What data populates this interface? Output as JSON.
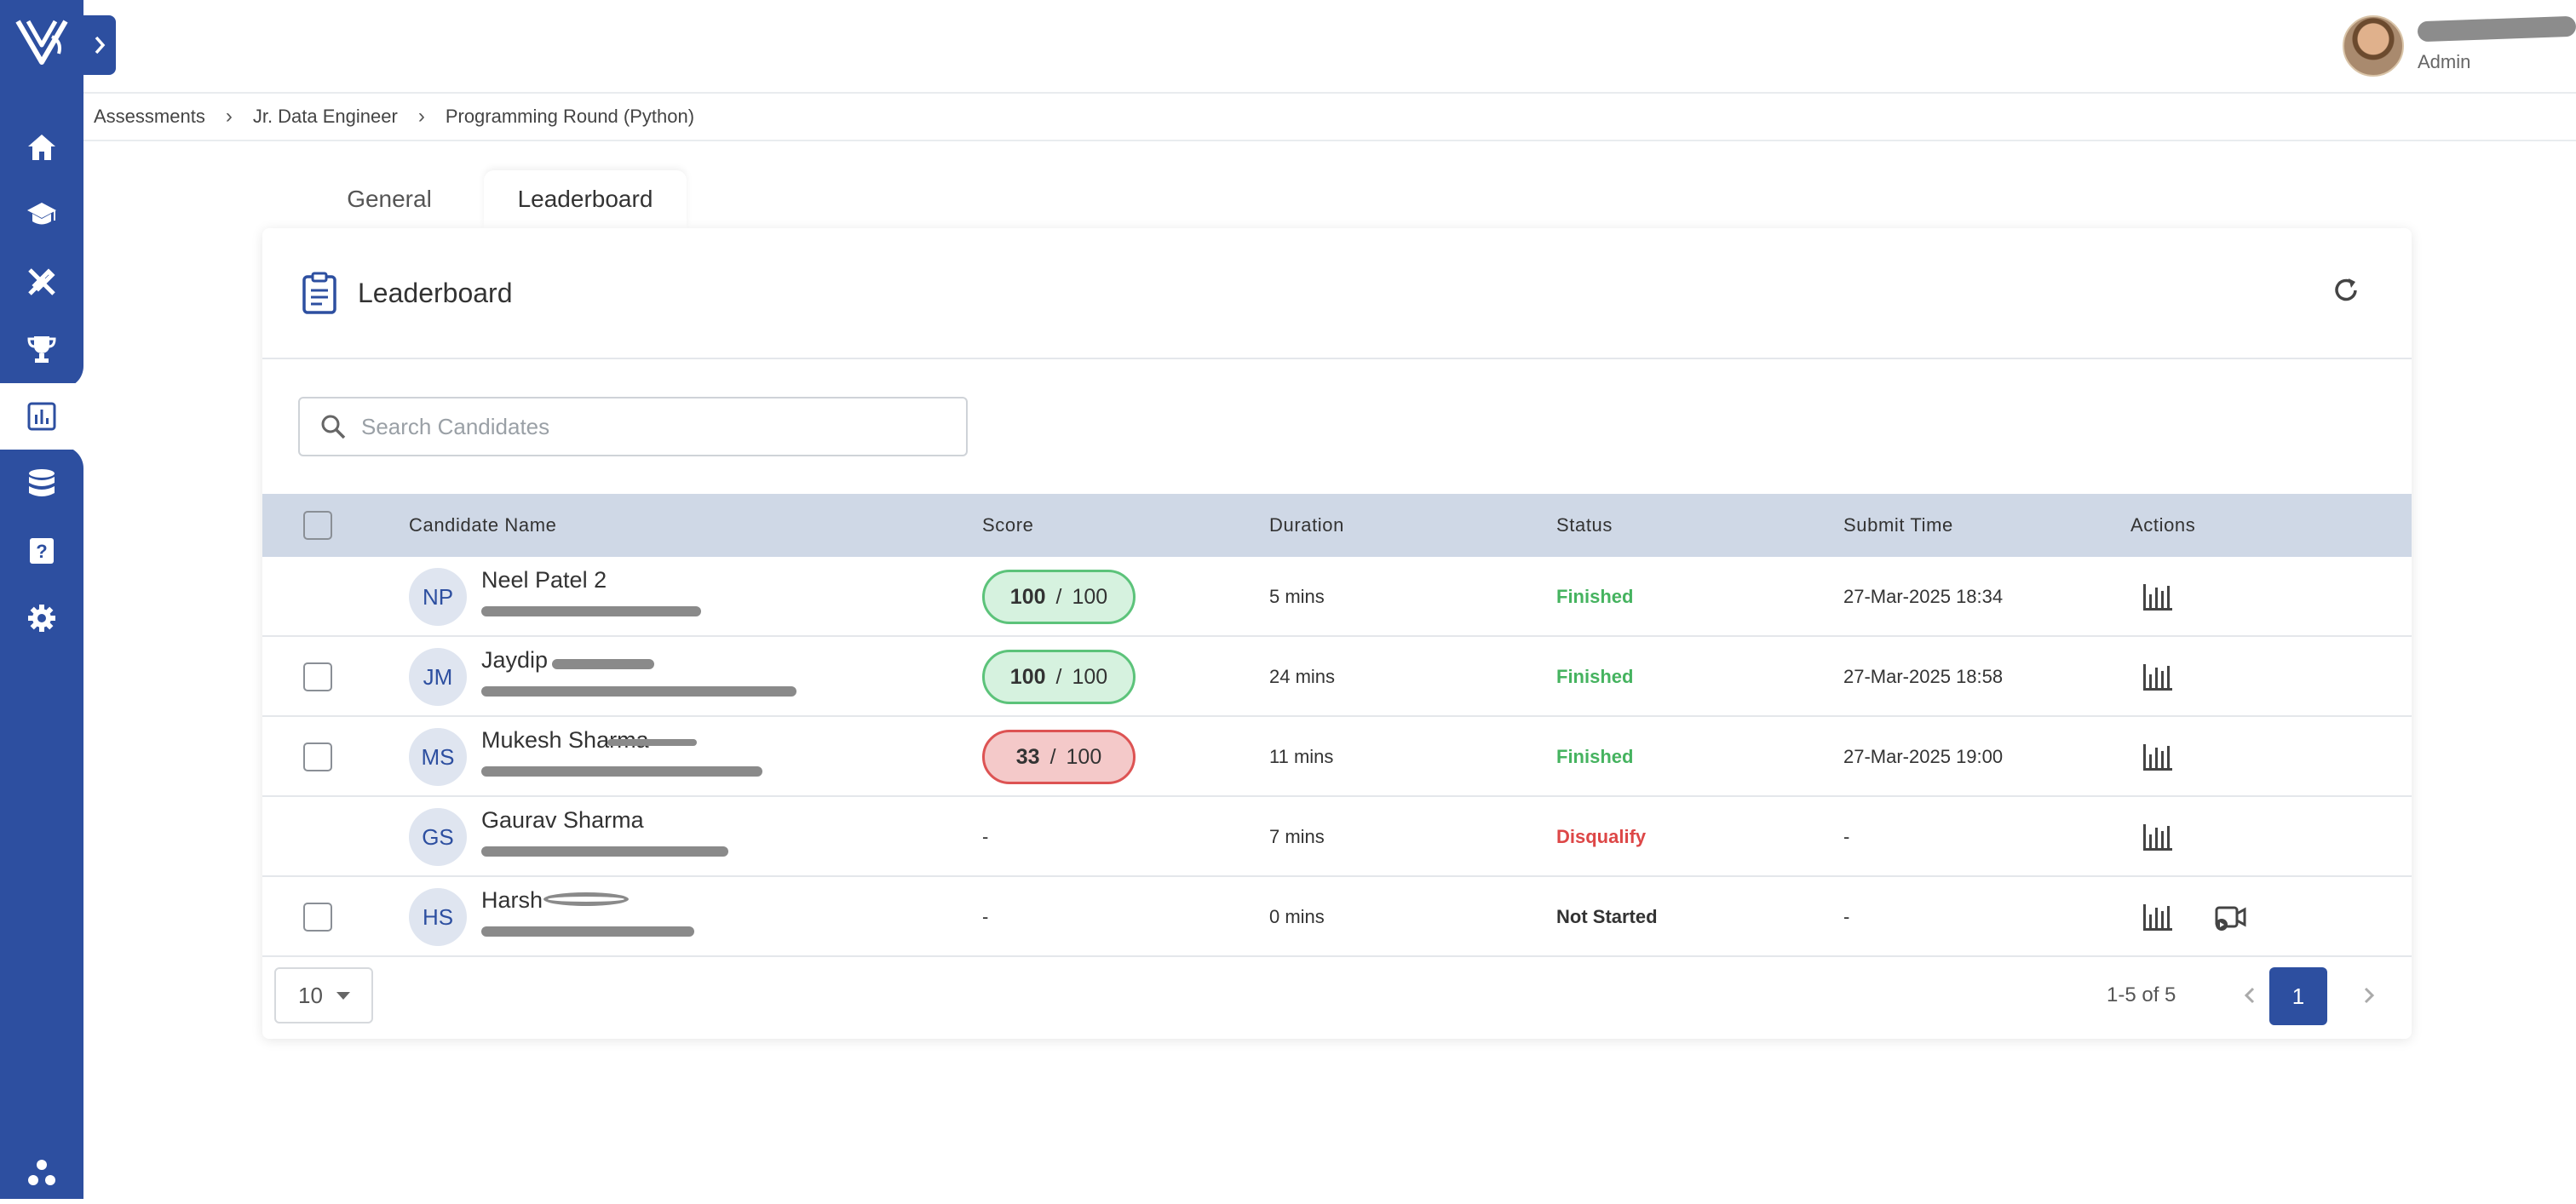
{
  "user": {
    "role": "Admin"
  },
  "breadcrumb": [
    "Assessments",
    "Jr. Data Engineer",
    "Programming Round (Python)"
  ],
  "tabs": [
    {
      "label": "General",
      "active": false
    },
    {
      "label": "Leaderboard",
      "active": true
    }
  ],
  "card": {
    "title": "Leaderboard",
    "search_placeholder": "Search Candidates"
  },
  "table": {
    "columns": [
      "Candidate Name",
      "Score",
      "Duration",
      "Status",
      "Submit Time",
      "Actions"
    ],
    "rows": [
      {
        "initials": "NP",
        "name": "Neel Patel 2",
        "score": "100",
        "max": "100",
        "score_level": "green",
        "duration": "5 mins",
        "status": "Finished",
        "status_type": "finished",
        "submit": "27-Mar-2025 18:34",
        "checkbox": false,
        "video": false
      },
      {
        "initials": "JM",
        "name": "Jaydip",
        "score": "100",
        "max": "100",
        "score_level": "green",
        "duration": "24 mins",
        "status": "Finished",
        "status_type": "finished",
        "submit": "27-Mar-2025 18:58",
        "checkbox": true,
        "video": false
      },
      {
        "initials": "MS",
        "name": "Mukesh Sharma",
        "score": "33",
        "max": "100",
        "score_level": "red",
        "duration": "11 mins",
        "status": "Finished",
        "status_type": "finished",
        "submit": "27-Mar-2025 19:00",
        "checkbox": true,
        "video": false
      },
      {
        "initials": "GS",
        "name": "Gaurav Sharma",
        "score": "-",
        "max": "",
        "score_level": "none",
        "duration": "7 mins",
        "status": "Disqualify",
        "status_type": "disqualify",
        "submit": "-",
        "checkbox": false,
        "video": false
      },
      {
        "initials": "HS",
        "name": "Harsh",
        "score": "-",
        "max": "",
        "score_level": "none",
        "duration": "0 mins",
        "status": "Not Started",
        "status_type": "not-started",
        "submit": "-",
        "checkbox": true,
        "video": true
      }
    ]
  },
  "pagination": {
    "page_size": "10",
    "range": "1-5 of 5",
    "current_page": "1"
  },
  "colors": {
    "brand": "#2d4fa0",
    "finished": "#45b35f",
    "disqualify": "#dd4747",
    "header_row": "#cfd8e6"
  },
  "sidebar_icons": [
    "home-icon",
    "graduation-cap-icon",
    "tools-icon",
    "trophy-icon",
    "chart-icon",
    "database-icon",
    "question-icon",
    "gear-icon",
    "hub-icon"
  ]
}
